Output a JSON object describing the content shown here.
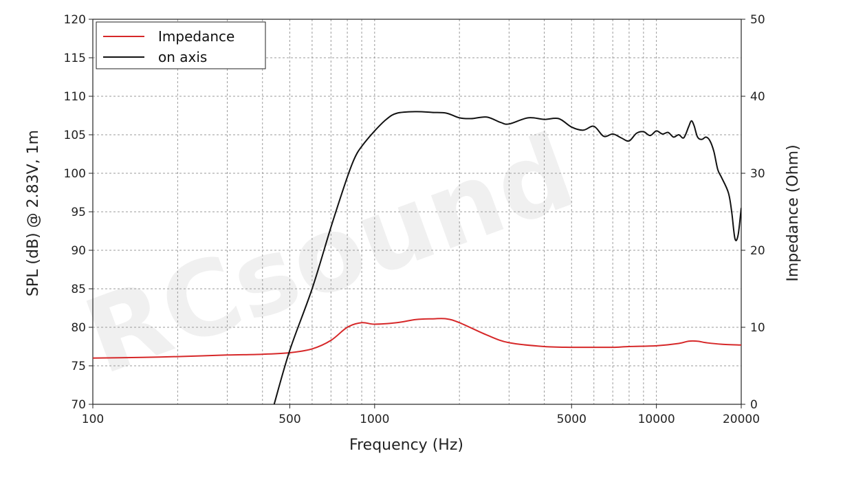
{
  "chart_data": {
    "type": "line",
    "xlabel": "Frequency (Hz)",
    "ylabel": "SPL (dB) @ 2.83V, 1m",
    "y2label": "Impedance (Ohm)",
    "xscale": "log",
    "xlim": [
      100,
      20000
    ],
    "ylim": [
      70,
      120
    ],
    "y2lim": [
      0,
      50
    ],
    "grid": true,
    "legend_position": "top-left",
    "watermark": "RCsound",
    "x_ticks": [
      100,
      500,
      1000,
      5000,
      10000,
      20000
    ],
    "x_tick_labels": [
      "100",
      "500",
      "1000",
      "5000",
      "10000",
      "20000"
    ],
    "y_ticks": [
      70,
      75,
      80,
      85,
      90,
      95,
      100,
      105,
      110,
      115,
      120
    ],
    "y_tick_labels": [
      "70",
      "75",
      "80",
      "85",
      "90",
      "95",
      "100",
      "105",
      "110",
      "115",
      "120"
    ],
    "y2_ticks": [
      0,
      10,
      20,
      30,
      40,
      50
    ],
    "y2_tick_labels": [
      "0",
      "10",
      "20",
      "30",
      "40",
      "50"
    ],
    "series": [
      {
        "name": "Impedance",
        "axis": "right",
        "color": "#d62728",
        "x": [
          100,
          150,
          200,
          300,
          400,
          500,
          600,
          700,
          800,
          900,
          1000,
          1200,
          1400,
          1600,
          1800,
          2000,
          2500,
          3000,
          4000,
          5000,
          6000,
          7000,
          8000,
          10000,
          12000,
          13000,
          14000,
          15000,
          17000,
          20000
        ],
        "values": [
          6.0,
          6.1,
          6.2,
          6.4,
          6.5,
          6.7,
          7.2,
          8.3,
          10.0,
          10.6,
          10.4,
          10.6,
          11.0,
          11.1,
          11.1,
          10.6,
          9.0,
          8.0,
          7.5,
          7.4,
          7.4,
          7.4,
          7.5,
          7.6,
          7.9,
          8.2,
          8.2,
          8.0,
          7.8,
          7.7
        ]
      },
      {
        "name": "on axis",
        "axis": "left",
        "color": "#111111",
        "x": [
          440,
          500,
          600,
          700,
          800,
          850,
          900,
          1000,
          1100,
          1200,
          1400,
          1600,
          1800,
          2000,
          2200,
          2500,
          2800,
          3000,
          3500,
          4000,
          4500,
          5000,
          5500,
          6000,
          6500,
          7000,
          7500,
          8000,
          8500,
          9000,
          9500,
          10000,
          10500,
          11000,
          11500,
          12000,
          12500,
          13000,
          13300,
          13600,
          14000,
          14500,
          15000,
          15500,
          16000,
          16500,
          17000,
          18000,
          18500,
          19000,
          19500,
          20000
        ],
        "values": [
          70,
          77,
          85,
          93,
          99.5,
          102,
          103.5,
          105.5,
          107,
          107.8,
          108,
          107.9,
          107.8,
          107.2,
          107.1,
          107.3,
          106.6,
          106.4,
          107.2,
          107.0,
          107.1,
          106.0,
          105.6,
          106.1,
          104.8,
          105.1,
          104.6,
          104.2,
          105.2,
          105.4,
          104.9,
          105.5,
          105.1,
          105.3,
          104.7,
          105.0,
          104.6,
          106.0,
          106.8,
          106.2,
          104.7,
          104.4,
          104.7,
          104.2,
          102.8,
          100.5,
          99.5,
          97.5,
          95.0,
          91.5,
          92.0,
          95.5
        ]
      }
    ]
  }
}
